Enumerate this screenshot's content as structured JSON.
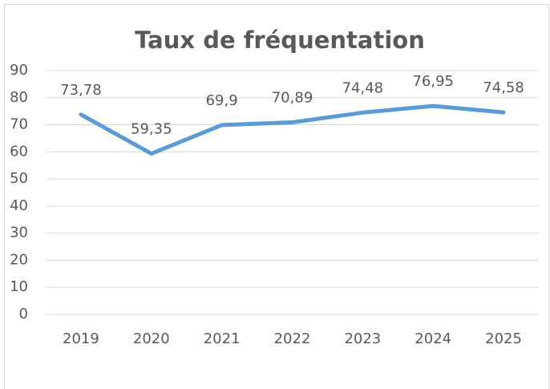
{
  "chart_data": {
    "type": "line",
    "title": "Taux de fréquentation",
    "categories": [
      "2019",
      "2020",
      "2021",
      "2022",
      "2023",
      "2024",
      "2025"
    ],
    "series": [
      {
        "color": "#5b9bd5",
        "values": [
          73.78,
          59.35,
          69.9,
          70.89,
          74.48,
          76.95,
          74.58
        ],
        "value_labels": [
          "73,78",
          "59,35",
          "69,9",
          "70,89",
          "74,48",
          "76,95",
          "74,58"
        ]
      }
    ],
    "ylim": [
      0,
      90
    ],
    "yticks": [
      0,
      10,
      20,
      30,
      40,
      50,
      60,
      70,
      80,
      90
    ],
    "grid": true
  }
}
